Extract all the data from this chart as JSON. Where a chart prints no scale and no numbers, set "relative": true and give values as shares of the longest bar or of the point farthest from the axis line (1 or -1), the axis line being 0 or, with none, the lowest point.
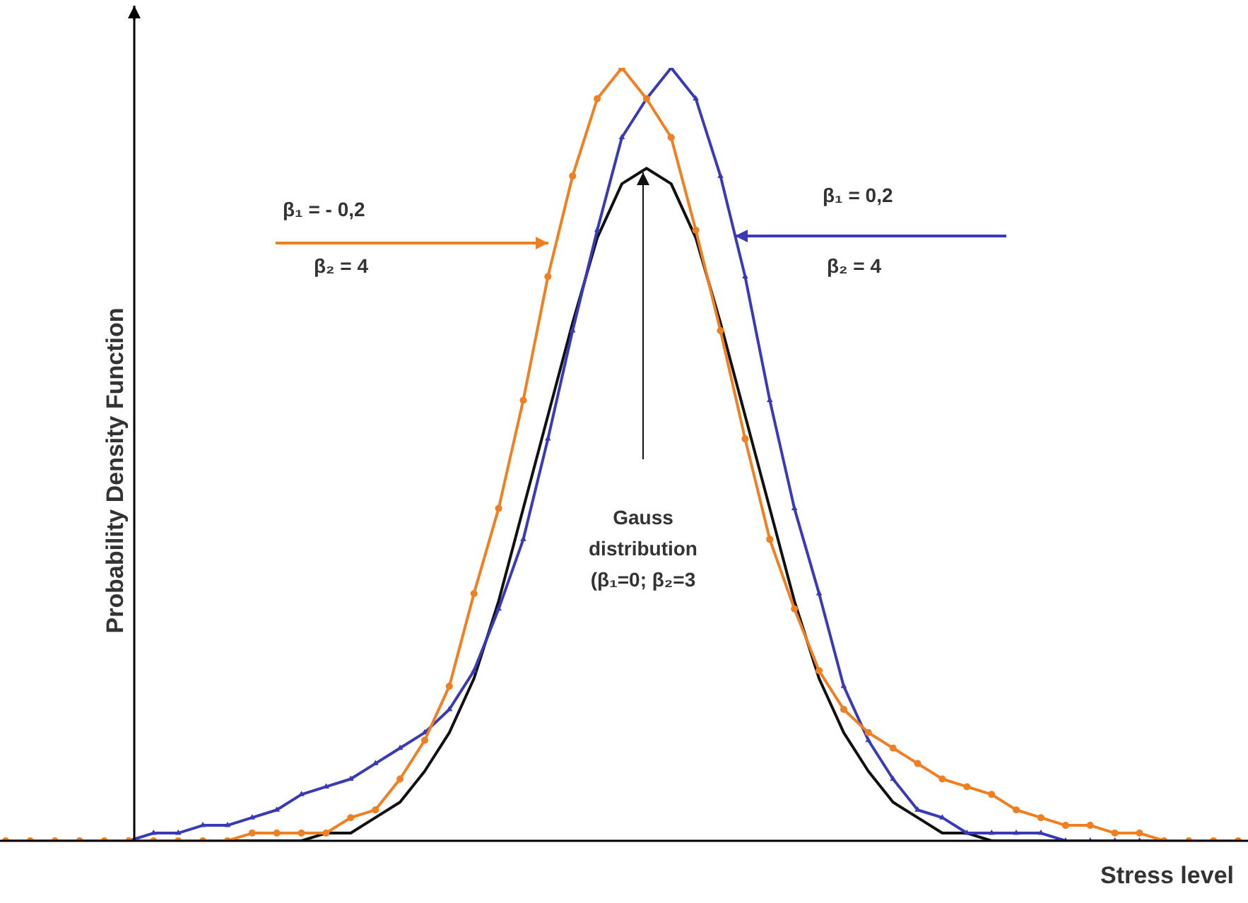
{
  "chart_data": {
    "type": "line",
    "relative": true,
    "xlabel": "Stress level",
    "ylabel": "Probability Density Function",
    "categories": [
      null,
      null,
      null,
      null,
      null,
      null,
      null,
      null,
      null,
      null,
      null,
      null,
      null,
      null,
      null,
      null,
      null,
      null,
      null,
      null,
      null,
      null,
      null,
      null,
      null,
      null,
      null,
      null,
      null,
      null,
      null,
      null,
      null,
      null,
      null,
      null,
      null,
      null,
      null,
      null,
      null,
      null,
      null,
      null,
      null,
      null,
      null,
      null,
      null,
      null,
      null
    ],
    "series": [
      {
        "color": "#f07f22",
        "marker": "circle",
        "values": [
          0,
          0,
          0,
          0,
          0,
          0,
          0,
          0,
          0,
          0,
          0.01,
          0.01,
          0.01,
          0.01,
          0.03,
          0.04,
          0.08,
          0.13,
          0.2,
          0.32,
          0.43,
          0.57,
          0.73,
          0.86,
          0.96,
          1,
          0.96,
          0.91,
          0.79,
          0.66,
          0.52,
          0.39,
          0.3,
          0.22,
          0.17,
          0.14,
          0.12,
          0.1,
          0.08,
          0.07,
          0.06,
          0.04,
          0.03,
          0.02,
          0.02,
          0.01,
          0.01,
          0,
          0,
          0,
          0
        ]
      },
      {
        "color": "#3a3ab8",
        "marker": "triangle",
        "values": [
          null,
          null,
          null,
          null,
          0,
          0,
          0.01,
          0.01,
          0.02,
          0.02,
          0.03,
          0.04,
          0.06,
          0.07,
          0.08,
          0.1,
          0.12,
          0.14,
          0.17,
          0.22,
          0.3,
          0.39,
          0.52,
          0.66,
          0.79,
          0.91,
          0.96,
          1,
          0.96,
          0.86,
          0.73,
          0.57,
          0.43,
          0.32,
          0.2,
          0.13,
          0.08,
          0.04,
          0.03,
          0.01,
          0.01,
          0.01,
          0.01,
          0,
          0,
          0,
          0,
          0,
          null,
          null,
          null
        ]
      },
      {
        "color": "#111111",
        "marker": "none",
        "values": [
          0,
          0,
          0,
          0,
          0,
          0,
          0,
          0,
          0,
          0,
          0,
          0,
          0,
          0.01,
          0.01,
          0.03,
          0.05,
          0.09,
          0.14,
          0.21,
          0.31,
          0.43,
          0.55,
          0.67,
          0.78,
          0.85,
          0.87,
          0.85,
          0.78,
          0.67,
          0.55,
          0.43,
          0.31,
          0.21,
          0.14,
          0.09,
          0.05,
          0.03,
          0.01,
          0.01,
          0,
          0,
          0,
          0,
          0,
          0,
          0,
          0,
          0,
          0,
          0
        ]
      }
    ],
    "annotations": [
      "β₁ = - 0,2",
      "β₂ = 4",
      "β₁ =  0,2",
      "β₂ = 4",
      "Gauss distribution (β₁=0; β₂=3"
    ],
    "legend": false
  }
}
